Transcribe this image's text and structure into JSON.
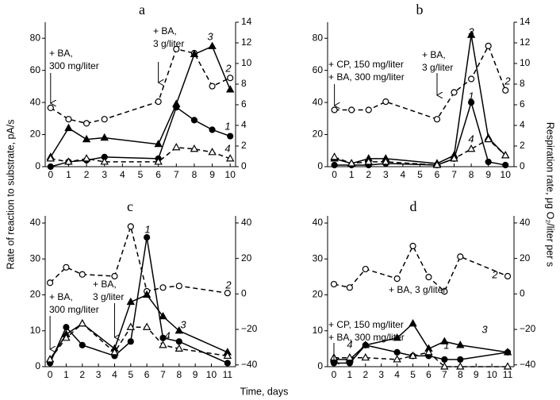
{
  "axis_labels": {
    "y": "Rate of reaction to substrate, pA/s",
    "y2": "Respiration rate, μg O₂/liter per s",
    "x": "Time, days"
  },
  "chart_data": [
    {
      "type": "line",
      "title": "a",
      "x": [
        0,
        1,
        2,
        3,
        6,
        7,
        8,
        9,
        10
      ],
      "xlim": [
        -0.3,
        10.3
      ],
      "xticks": [
        0,
        1,
        2,
        3,
        4,
        5,
        6,
        7,
        8,
        9,
        10
      ],
      "ylim": [
        0,
        90
      ],
      "yticks": [
        0,
        20,
        40,
        60,
        80
      ],
      "y2lim": [
        0,
        14
      ],
      "y2ticks": [
        0,
        2,
        4,
        6,
        8,
        10,
        12,
        14
      ],
      "series": [
        {
          "name": "1",
          "color": "#000000",
          "marker": "circle",
          "filled": true,
          "dashed": false,
          "values": [
            0,
            3,
            4,
            6,
            5,
            37,
            29,
            23,
            19
          ]
        },
        {
          "name": "2",
          "color": "#000000",
          "marker": "circle",
          "filled": false,
          "dashed": true,
          "axis": "y2",
          "values": [
            5.7,
            4.6,
            4.2,
            4.6,
            6.3,
            11.4,
            11,
            7.8,
            8.6
          ]
        },
        {
          "name": "3",
          "color": "#000000",
          "marker": "triangle",
          "filled": true,
          "dashed": false,
          "values": [
            6,
            24,
            17,
            18,
            14,
            39,
            70,
            75,
            48
          ]
        },
        {
          "name": "4",
          "color": "#000000",
          "marker": "triangle",
          "filled": false,
          "dashed": true,
          "values": [
            5,
            3,
            5,
            3,
            3,
            12,
            11,
            9,
            5
          ]
        }
      ],
      "annotations": [
        {
          "lines": [
            "+ BA,",
            "300 mg/liter"
          ],
          "x": 0
        },
        {
          "lines": [
            "+ BA,",
            "3 g/liter"
          ],
          "x": 6
        }
      ]
    },
    {
      "type": "line",
      "title": "b",
      "x": [
        0,
        1,
        2,
        3,
        6,
        7,
        8,
        9,
        10
      ],
      "xlim": [
        -0.4,
        10.5
      ],
      "xticks": [
        0,
        1,
        2,
        3,
        4,
        5,
        6,
        7,
        8,
        9,
        10
      ],
      "ylim": [
        0,
        90
      ],
      "yticks": [
        0,
        20,
        40,
        60,
        80
      ],
      "y2lim": [
        0,
        14
      ],
      "y2ticks": [
        0,
        2,
        4,
        6,
        8,
        10,
        12,
        14
      ],
      "series": [
        {
          "name": "1",
          "color": "#000000",
          "marker": "circle",
          "filled": true,
          "dashed": false,
          "values": [
            1,
            1,
            1,
            2,
            1,
            5,
            40,
            3,
            1
          ]
        },
        {
          "name": "2",
          "color": "#000000",
          "marker": "circle",
          "filled": false,
          "dashed": true,
          "axis": "y2",
          "values": [
            5.5,
            5.5,
            5.5,
            6.3,
            4.6,
            7.2,
            8.5,
            11.7,
            7.4
          ]
        },
        {
          "name": "3",
          "color": "#000000",
          "marker": "triangle",
          "filled": true,
          "dashed": false,
          "values": [
            5,
            2,
            5,
            5,
            2,
            7,
            82,
            18,
            7
          ]
        },
        {
          "name": "4",
          "color": "#000000",
          "marker": "triangle",
          "filled": false,
          "dashed": true,
          "values": [
            6,
            2,
            3,
            3,
            1,
            5,
            11,
            17,
            7
          ]
        }
      ],
      "annotations": [
        {
          "lines": [
            "+ CP, 150 mg/liter",
            "+ BA, 300 mg/liter"
          ],
          "x": 0
        },
        {
          "lines": [
            "+ BA,",
            "3 g/liter"
          ],
          "x": 6
        }
      ]
    },
    {
      "type": "line",
      "title": "c",
      "x": [
        0,
        1,
        2,
        4,
        5,
        6,
        7,
        8,
        11
      ],
      "xlim": [
        -0.3,
        11.5
      ],
      "xticks": [
        0,
        1,
        2,
        3,
        4,
        5,
        6,
        7,
        8,
        9,
        10,
        11
      ],
      "ylim": [
        0,
        42
      ],
      "yticks": [
        0,
        10,
        20,
        30,
        40
      ],
      "y2lim": [
        -41,
        44
      ],
      "y2ticks": [
        {
          "value": -40,
          "label": "−40"
        },
        {
          "value": -20,
          "label": "−20"
        },
        0,
        20,
        40
      ],
      "series": [
        {
          "name": "1",
          "color": "#000000",
          "marker": "circle",
          "filled": true,
          "dashed": false,
          "values": [
            1,
            11,
            6,
            3,
            7,
            36,
            8,
            7,
            1
          ]
        },
        {
          "name": "2",
          "color": "#000000",
          "marker": "circle",
          "filled": false,
          "dashed": true,
          "axis": "y2",
          "values": [
            6.3,
            15,
            11,
            10,
            38,
            1.5,
            3.6,
            4.5,
            0.5
          ]
        },
        {
          "name": "3",
          "color": "#000000",
          "marker": "triangle",
          "filled": true,
          "dashed": false,
          "values": [
            2,
            9,
            12,
            5,
            18,
            20,
            14,
            10,
            4
          ]
        },
        {
          "name": "4",
          "color": "#000000",
          "marker": "triangle",
          "filled": false,
          "dashed": true,
          "values": [
            2,
            8,
            12,
            4,
            11,
            11,
            6,
            5,
            3
          ]
        }
      ],
      "annotations": [
        {
          "lines": [
            "+ BA,",
            "300 mg/liter"
          ],
          "x": 0
        },
        {
          "lines": [
            "+ BA,",
            "3 g/liter"
          ],
          "x": 4
        }
      ]
    },
    {
      "type": "line",
      "title": "d",
      "x": [
        0,
        1,
        2,
        4,
        5,
        6,
        7,
        8,
        11
      ],
      "xlim": [
        -0.4,
        11.4
      ],
      "xticks": [
        0,
        1,
        2,
        3,
        4,
        5,
        6,
        7,
        8,
        9,
        10,
        11
      ],
      "ylim": [
        0,
        42
      ],
      "yticks": [
        0,
        10,
        20,
        30,
        40
      ],
      "y2lim": [
        -41,
        44
      ],
      "y2ticks": [
        {
          "value": -40,
          "label": "−40"
        },
        {
          "value": -20,
          "label": "−20"
        },
        0,
        20,
        40
      ],
      "series": [
        {
          "name": "1",
          "color": "#000000",
          "marker": "circle",
          "filled": true,
          "dashed": false,
          "values": [
            1,
            1,
            6,
            4,
            3,
            3,
            2,
            2,
            4
          ]
        },
        {
          "name": "2",
          "color": "#000000",
          "marker": "circle",
          "filled": false,
          "dashed": true,
          "axis": "y2",
          "values": [
            5.5,
            3.6,
            14,
            8.6,
            27,
            9.5,
            1.4,
            21,
            10
          ]
        },
        {
          "name": "3",
          "color": "#000000",
          "marker": "triangle",
          "filled": true,
          "dashed": false,
          "values": [
            2,
            2,
            6,
            8,
            12,
            5,
            7,
            6,
            4
          ]
        },
        {
          "name": "4",
          "color": "#000000",
          "marker": "triangle",
          "filled": false,
          "dashed": true,
          "values": [
            2.5,
            2.5,
            2.5,
            2,
            3,
            4,
            0,
            0,
            0
          ]
        }
      ],
      "annotations": [
        {
          "lines": [
            "+ CP, 150 mg/liter",
            "+ BA, 300 mg/liter"
          ],
          "x": 0
        },
        {
          "lines": [
            "+ BA, 3 g/liter"
          ],
          "x": 4
        }
      ]
    }
  ]
}
